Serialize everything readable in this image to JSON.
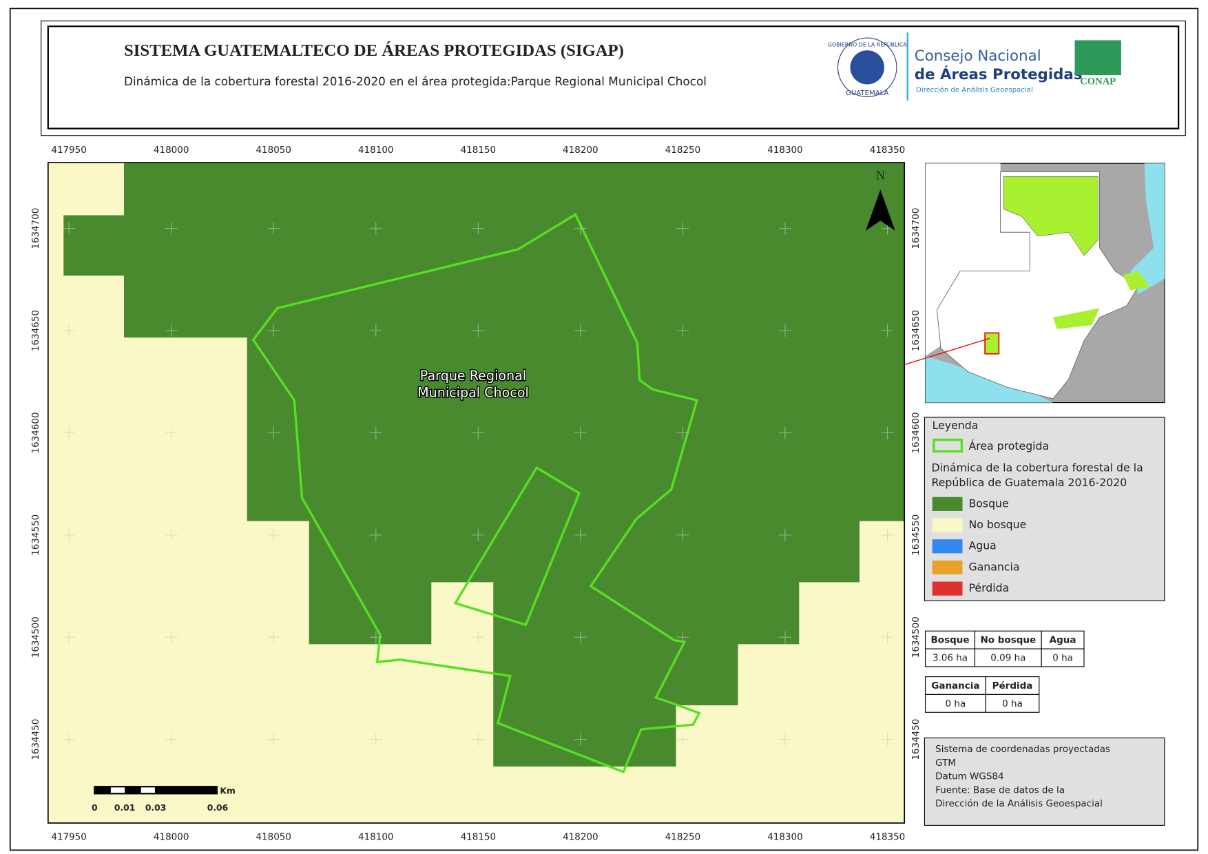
{
  "header": {
    "title": "SISTEMA GUATEMALTECO DE ÁREAS PROTEGIDAS  (SIGAP)",
    "subtitle": "Dinámica de la cobertura forestal 2016-2020 en el área protegida:Parque Regional Municipal Chocol",
    "seal_top": "GOBIERNO DE LA REPÚBLICA",
    "seal_bottom": "GUATEMALA",
    "org_line1": "Consejo Nacional",
    "org_line2": "de Áreas Protegidas",
    "org_line3": "Dirección de Análisis Geoespacial",
    "conap": "CONAP"
  },
  "map": {
    "xlim": [
      417939.8,
      418358.3
    ],
    "ylim": [
      1634409.1,
      1634732.2
    ],
    "xticks": [
      417950,
      418000,
      418050,
      418100,
      418150,
      418200,
      418250,
      418300,
      418350
    ],
    "yticks": [
      1634450,
      1634500,
      1634550,
      1634600,
      1634650,
      1634700
    ],
    "area_label": [
      "Parque Regional",
      "Municipal Chocol"
    ],
    "north": "N",
    "scale_labels": [
      "0",
      "0.01",
      "0.03",
      "0.06"
    ],
    "scale_unit": "Km"
  },
  "legend": {
    "title": "Leyenda",
    "protected_area": "Área protegida",
    "group_title": [
      "Dinámica de la cobertura forestal de la",
      "República de Guatemala 2016-2020"
    ],
    "items": [
      {
        "name": "Bosque",
        "color": "#4a8a2e"
      },
      {
        "name": "No bosque",
        "color": "#fbf8c8"
      },
      {
        "name": "Agua",
        "color": "#3388ee"
      },
      {
        "name": "Ganancia",
        "color": "#e8a22a"
      },
      {
        "name": "Pérdida",
        "color": "#e03030"
      }
    ]
  },
  "table1": {
    "headers": [
      "Bosque",
      "No bosque",
      "Agua"
    ],
    "values": [
      "3.06 ha",
      "0.09 ha",
      "0 ha"
    ]
  },
  "table2": {
    "headers": [
      "Ganancia",
      "Pérdida"
    ],
    "values": [
      "0 ha",
      "0 ha"
    ]
  },
  "notes": [
    "Sistema de coordenadas proyectadas",
    "GTM",
    "Datum WGS84",
    "Fuente: Base de datos de la",
    "Dirección de la Análisis Geoespacial"
  ]
}
